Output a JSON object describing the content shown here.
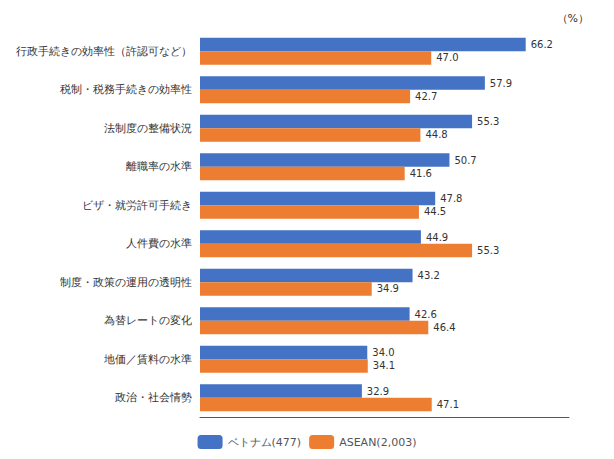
{
  "chart_data": {
    "type": "bar",
    "orientation": "horizontal",
    "title": "（%）",
    "categories": [
      "行政手続きの効率性（許認可など）",
      "税制・税務手続きの効率性",
      "法制度の整備状況",
      "離職率の水準",
      "ビザ・就労許可手続き",
      "人件費の水準",
      "制度・政策の運用の透明性",
      "為替レートの変化",
      "地価／賃料の水準",
      "政治・社会情勢"
    ],
    "series": [
      {
        "name": "ベトナム(477)",
        "color": "#4472C4",
        "values": [
          66.2,
          57.9,
          55.3,
          50.7,
          47.8,
          44.9,
          43.2,
          42.6,
          34.0,
          32.9
        ],
        "value_labels": [
          "66.2",
          "57.9",
          "55.3",
          "50.7",
          "47.8",
          "44.9",
          "43.2",
          "42.6",
          "34.0",
          "32.9"
        ]
      },
      {
        "name": "ASEAN(2,003)",
        "color": "#ED7D31",
        "values": [
          47.0,
          42.7,
          44.8,
          41.6,
          44.5,
          55.3,
          34.9,
          46.4,
          34.1,
          47.1
        ],
        "value_labels": [
          "47.0",
          "42.7",
          "44.8",
          "41.6",
          "44.5",
          "55.3",
          "34.9",
          "46.4",
          "34.1",
          "47.1"
        ]
      }
    ],
    "xlim": [
      0,
      75
    ],
    "tick_labels": "y",
    "data_labels": true,
    "grid": false,
    "legend": "bottom"
  }
}
